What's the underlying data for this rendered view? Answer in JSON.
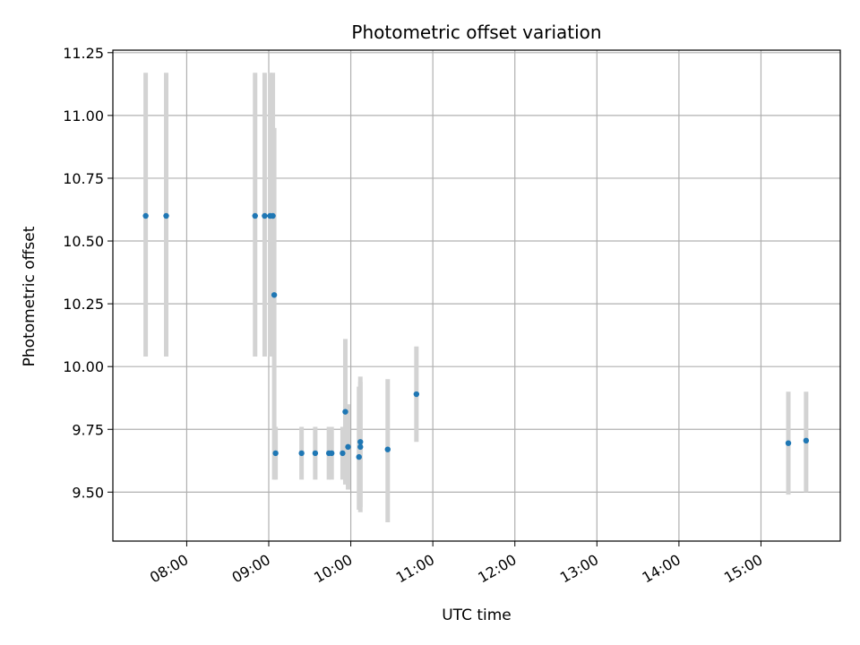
{
  "chart_data": {
    "type": "scatter",
    "title": "Photometric offset variation",
    "xlabel": "UTC time",
    "ylabel": "Photometric offset",
    "x_axis": "time",
    "xlim": [
      "07:06",
      "15:58"
    ],
    "ylim": [
      9.305,
      11.26
    ],
    "grid": true,
    "xticks": [
      "08:00",
      "09:00",
      "10:00",
      "11:00",
      "12:00",
      "13:00",
      "14:00",
      "15:00"
    ],
    "yticks": [
      "9.50",
      "9.75",
      "10.00",
      "10.25",
      "10.50",
      "10.75",
      "11.00",
      "11.25"
    ],
    "point_color": "#1f77b4",
    "errorbar_color": "#d3d3d3",
    "points": [
      {
        "x": "07:30",
        "y": 10.6,
        "err_low": 10.04,
        "err_high": 11.17
      },
      {
        "x": "07:45",
        "y": 10.6,
        "err_low": 10.04,
        "err_high": 11.17
      },
      {
        "x": "08:50",
        "y": 10.6,
        "err_low": 10.04,
        "err_high": 11.17
      },
      {
        "x": "08:57",
        "y": 10.6,
        "err_low": 10.04,
        "err_high": 11.17
      },
      {
        "x": "09:01",
        "y": 10.6,
        "err_low": 10.04,
        "err_high": 11.17
      },
      {
        "x": "09:03",
        "y": 10.6,
        "err_low": 10.04,
        "err_high": 11.17
      },
      {
        "x": "09:04",
        "y": 10.285,
        "err_low": 9.55,
        "err_high": 10.95
      },
      {
        "x": "09:05",
        "y": 9.655,
        "err_low": 9.55,
        "err_high": 9.76
      },
      {
        "x": "09:24",
        "y": 9.655,
        "err_low": 9.55,
        "err_high": 9.76
      },
      {
        "x": "09:34",
        "y": 9.655,
        "err_low": 9.55,
        "err_high": 9.76
      },
      {
        "x": "09:44",
        "y": 9.655,
        "err_low": 9.55,
        "err_high": 9.76
      },
      {
        "x": "09:46",
        "y": 9.655,
        "err_low": 9.55,
        "err_high": 9.76
      },
      {
        "x": "09:54",
        "y": 9.655,
        "err_low": 9.55,
        "err_high": 9.76
      },
      {
        "x": "09:56",
        "y": 9.82,
        "err_low": 9.53,
        "err_high": 10.11
      },
      {
        "x": "09:58",
        "y": 9.68,
        "err_low": 9.51,
        "err_high": 9.85
      },
      {
        "x": "10:06",
        "y": 9.64,
        "err_low": 9.43,
        "err_high": 9.92
      },
      {
        "x": "10:07",
        "y": 9.68,
        "err_low": 9.42,
        "err_high": 9.94
      },
      {
        "x": "10:07",
        "y": 9.7,
        "err_low": 9.44,
        "err_high": 9.96
      },
      {
        "x": "10:27",
        "y": 9.67,
        "err_low": 9.38,
        "err_high": 9.95
      },
      {
        "x": "10:48",
        "y": 9.89,
        "err_low": 9.7,
        "err_high": 10.08
      },
      {
        "x": "15:20",
        "y": 9.695,
        "err_low": 9.49,
        "err_high": 9.9
      },
      {
        "x": "15:33",
        "y": 9.705,
        "err_low": 9.5,
        "err_high": 9.9
      }
    ]
  }
}
